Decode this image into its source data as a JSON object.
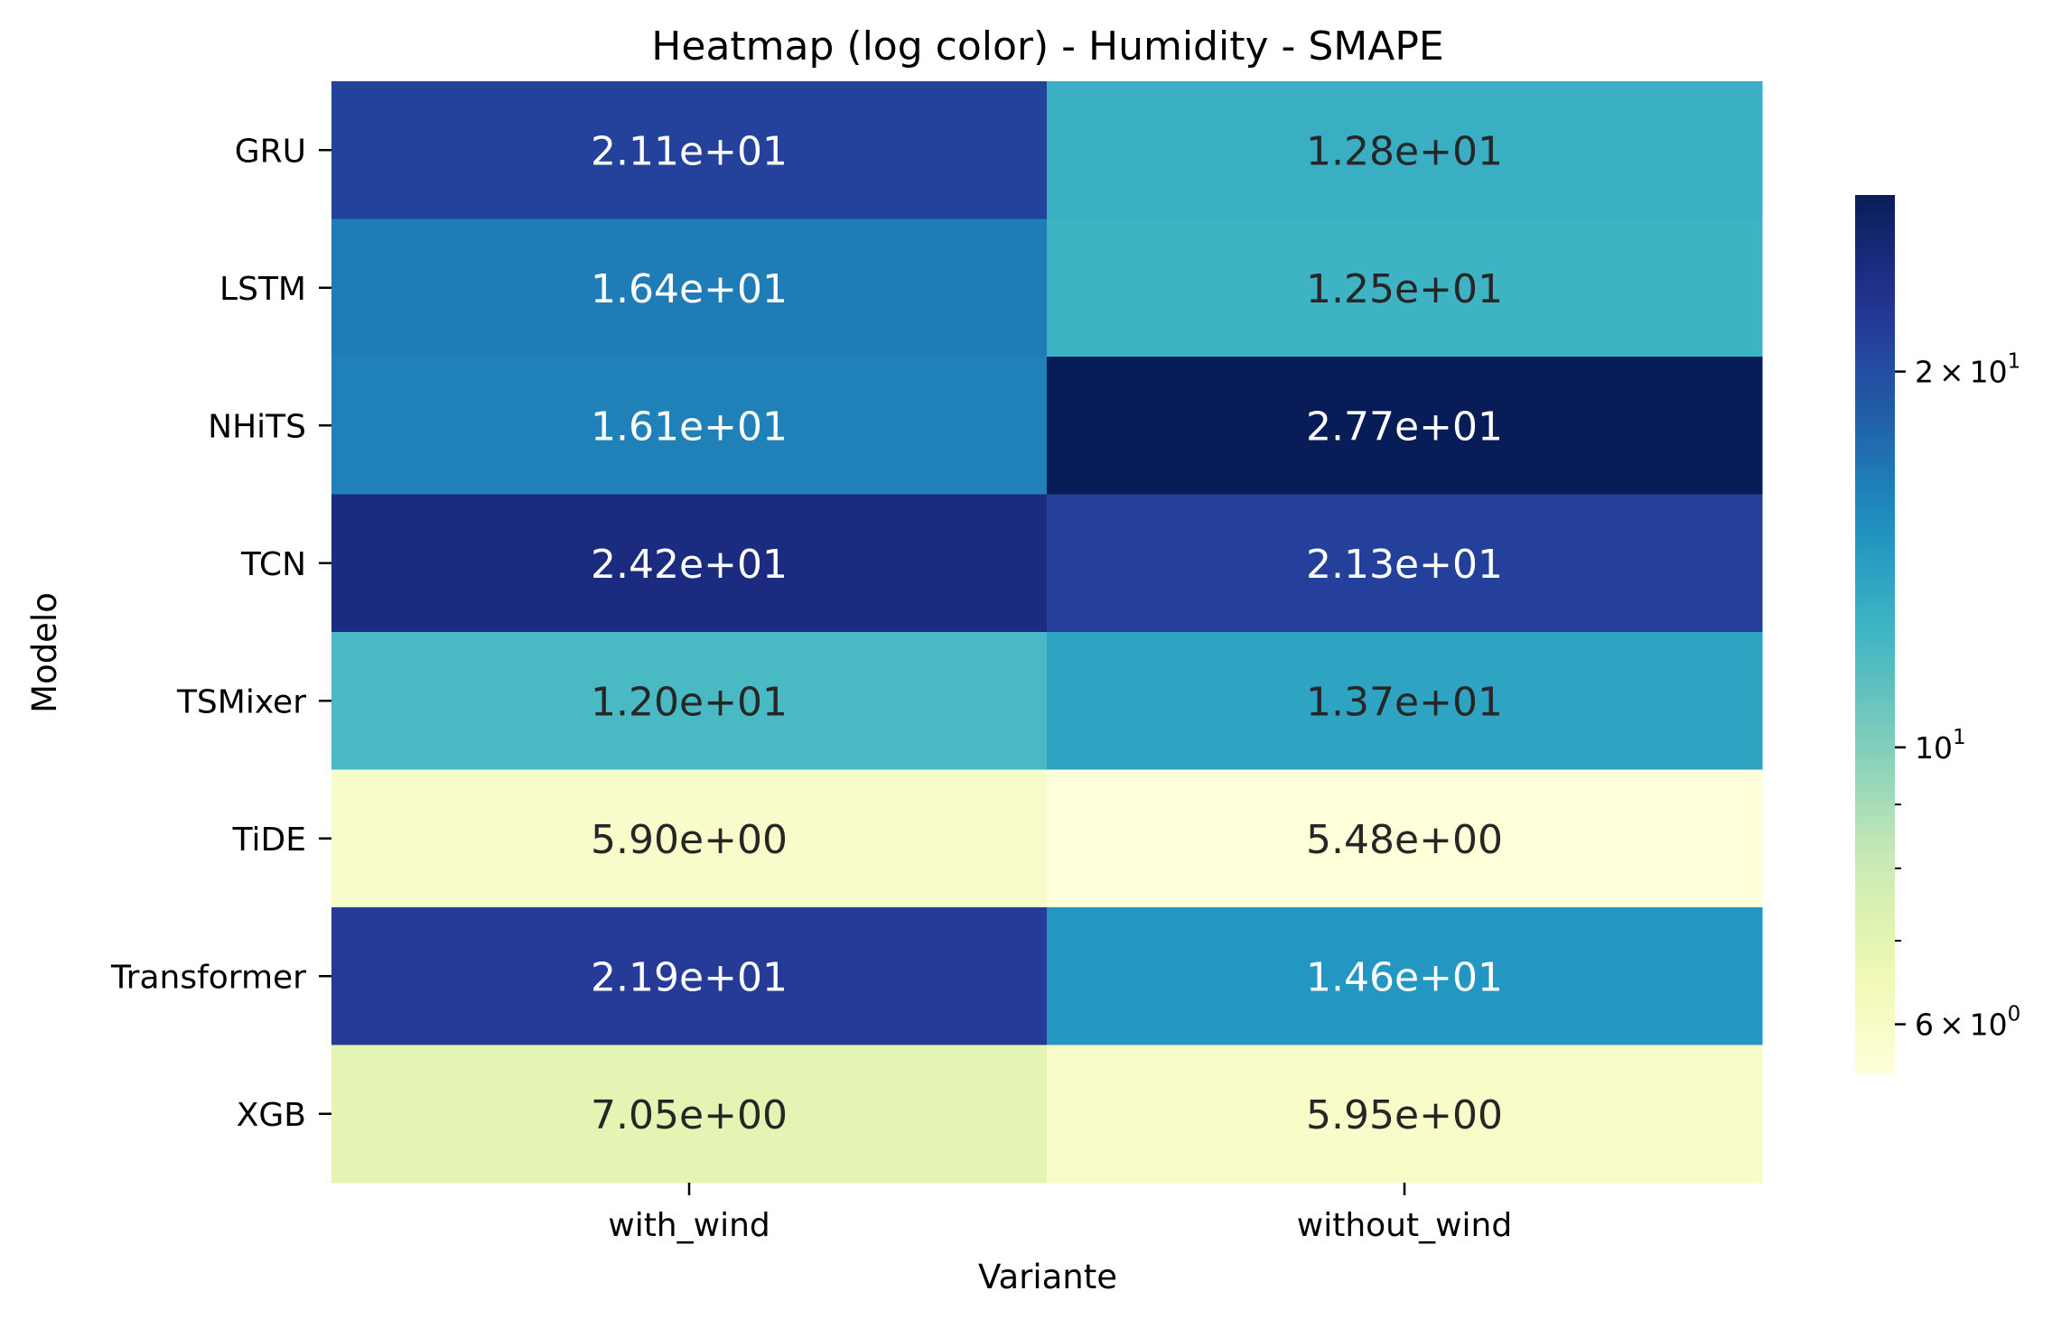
{
  "chart_data": {
    "type": "heatmap",
    "title": "Heatmap (log color) - Humidity - SMAPE",
    "xlabel": "Variante",
    "ylabel": "Modelo",
    "x_categories": [
      "with_wind",
      "without_wind"
    ],
    "y_categories": [
      "GRU",
      "LSTM",
      "NHiTS",
      "TCN",
      "TSMixer",
      "TiDE",
      "Transformer",
      "XGB"
    ],
    "values": [
      [
        21.1,
        12.8
      ],
      [
        16.4,
        12.5
      ],
      [
        16.1,
        27.7
      ],
      [
        24.2,
        21.3
      ],
      [
        12.0,
        13.7
      ],
      [
        5.9,
        5.48
      ],
      [
        21.9,
        14.6
      ],
      [
        7.05,
        5.95
      ]
    ],
    "cell_labels": [
      [
        "2.11e+01",
        "1.28e+01"
      ],
      [
        "1.64e+01",
        "1.25e+01"
      ],
      [
        "1.61e+01",
        "2.77e+01"
      ],
      [
        "2.42e+01",
        "2.13e+01"
      ],
      [
        "1.20e+01",
        "1.37e+01"
      ],
      [
        "5.90e+00",
        "5.48e+00"
      ],
      [
        "2.19e+01",
        "1.46e+01"
      ],
      [
        "7.05e+00",
        "5.95e+00"
      ]
    ],
    "color_scale": "log",
    "colormap": "YlGnBu",
    "vmin": 5.48,
    "vmax": 27.7,
    "colorbar": {
      "major_ticks": [
        {
          "value": 20,
          "mantissa": "2",
          "exponent": "1"
        },
        {
          "value": 10,
          "mantissa": "",
          "exponent": "1"
        },
        {
          "value": 6,
          "mantissa": "6",
          "exponent": "0"
        }
      ],
      "minor_ticks": [
        9,
        8,
        7
      ]
    },
    "text_colors": {
      "dark_cell": "#ffffff",
      "light_cell": "#262626"
    }
  }
}
